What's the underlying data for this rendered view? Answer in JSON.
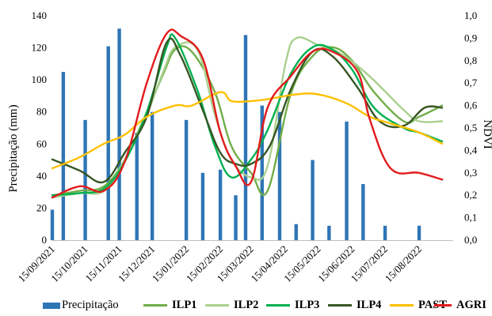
{
  "chart_data": {
    "type": "bar+line",
    "ylabel_left": "Precipitação (mm)",
    "ylabel_right": "NDVI",
    "yleft_lim": [
      0,
      140
    ],
    "yleft_ticks": [
      "0",
      "20",
      "40",
      "60",
      "80",
      "100",
      "120",
      "140"
    ],
    "yright_lim": [
      0,
      1
    ],
    "yright_ticks": [
      "0,0",
      "0,1",
      "0,2",
      "0,3",
      "0,4",
      "0,5",
      "0,6",
      "0,7",
      "0,8",
      "0,9",
      "1,0"
    ],
    "x_range": [
      "2021-09-15",
      "2022-09-15"
    ],
    "x_tick_labels": [
      "15/09/2021",
      "15/10/2021",
      "15/11/2021",
      "15/12/2021",
      "15/01/2022",
      "15/02/2022",
      "15/03/2022",
      "15/04/2022",
      "15/05/2022",
      "15/06/2022",
      "15/07/2022",
      "15/08/2022"
    ],
    "x_tick_dates": [
      "2021-09-15",
      "2021-10-15",
      "2021-11-15",
      "2021-12-15",
      "2022-01-15",
      "2022-02-15",
      "2022-03-15",
      "2022-04-15",
      "2022-05-15",
      "2022-06-15",
      "2022-07-15",
      "2022-08-15"
    ],
    "precipitation": {
      "name": "Precipitação",
      "color": "#2e75b6",
      "points": [
        [
          "2021-09-15",
          19
        ],
        [
          "2021-09-25",
          105
        ],
        [
          "2021-10-15",
          75
        ],
        [
          "2021-11-05",
          121
        ],
        [
          "2021-11-15",
          132
        ],
        [
          "2021-12-01",
          67
        ],
        [
          "2021-12-15",
          80
        ],
        [
          "2022-01-15",
          75
        ],
        [
          "2022-01-30",
          42
        ],
        [
          "2022-02-15",
          44
        ],
        [
          "2022-03-01",
          28
        ],
        [
          "2022-03-10",
          128
        ],
        [
          "2022-03-25",
          84
        ],
        [
          "2022-04-10",
          80
        ],
        [
          "2022-04-25",
          10
        ],
        [
          "2022-05-10",
          50
        ],
        [
          "2022-05-25",
          9
        ],
        [
          "2022-06-10",
          74
        ],
        [
          "2022-06-25",
          35
        ],
        [
          "2022-07-15",
          9
        ],
        [
          "2022-08-15",
          9
        ]
      ]
    },
    "series": [
      {
        "name": "ILP1",
        "color": "#70ad47",
        "points": [
          [
            "2021-09-15",
            0.2
          ],
          [
            "2021-10-10",
            0.22
          ],
          [
            "2021-11-01",
            0.24
          ],
          [
            "2021-11-20",
            0.36
          ],
          [
            "2021-12-10",
            0.57
          ],
          [
            "2021-12-25",
            0.74
          ],
          [
            "2022-01-05",
            0.85
          ],
          [
            "2022-01-20",
            0.84
          ],
          [
            "2022-02-10",
            0.66
          ],
          [
            "2022-02-25",
            0.42
          ],
          [
            "2022-03-15",
            0.3
          ],
          [
            "2022-03-30",
            0.22
          ],
          [
            "2022-04-20",
            0.65
          ],
          [
            "2022-05-10",
            0.82
          ],
          [
            "2022-05-28",
            0.86
          ],
          [
            "2022-06-15",
            0.8
          ],
          [
            "2022-07-05",
            0.66
          ],
          [
            "2022-08-01",
            0.53
          ],
          [
            "2022-08-15",
            0.55
          ],
          [
            "2022-09-05",
            0.6
          ]
        ]
      },
      {
        "name": "ILP2",
        "color": "#a9d18e",
        "points": [
          [
            "2021-09-15",
            0.19
          ],
          [
            "2021-10-10",
            0.21
          ],
          [
            "2021-11-01",
            0.22
          ],
          [
            "2021-11-20",
            0.36
          ],
          [
            "2021-12-10",
            0.56
          ],
          [
            "2021-12-25",
            0.75
          ],
          [
            "2022-01-05",
            0.86
          ],
          [
            "2022-01-25",
            0.85
          ],
          [
            "2022-02-10",
            0.56
          ],
          [
            "2022-02-25",
            0.36
          ],
          [
            "2022-03-15",
            0.28
          ],
          [
            "2022-03-30",
            0.33
          ],
          [
            "2022-04-15",
            0.78
          ],
          [
            "2022-04-25",
            0.9
          ],
          [
            "2022-05-15",
            0.87
          ],
          [
            "2022-06-05",
            0.83
          ],
          [
            "2022-07-01",
            0.73
          ],
          [
            "2022-08-01",
            0.58
          ],
          [
            "2022-08-15",
            0.53
          ],
          [
            "2022-09-05",
            0.53
          ]
        ]
      },
      {
        "name": "ILP3",
        "color": "#00b050",
        "points": [
          [
            "2021-09-15",
            0.2
          ],
          [
            "2021-10-10",
            0.21
          ],
          [
            "2021-11-01",
            0.23
          ],
          [
            "2021-11-20",
            0.35
          ],
          [
            "2021-12-10",
            0.57
          ],
          [
            "2021-12-28",
            0.86
          ],
          [
            "2022-01-05",
            0.9
          ],
          [
            "2022-01-25",
            0.67
          ],
          [
            "2022-02-10",
            0.42
          ],
          [
            "2022-02-25",
            0.28
          ],
          [
            "2022-03-15",
            0.36
          ],
          [
            "2022-03-30",
            0.49
          ],
          [
            "2022-04-20",
            0.74
          ],
          [
            "2022-05-10",
            0.86
          ],
          [
            "2022-05-28",
            0.85
          ],
          [
            "2022-06-15",
            0.76
          ],
          [
            "2022-07-05",
            0.59
          ],
          [
            "2022-08-01",
            0.5
          ],
          [
            "2022-08-15",
            0.48
          ],
          [
            "2022-09-05",
            0.44
          ]
        ]
      },
      {
        "name": "ILP4",
        "color": "#375623",
        "points": [
          [
            "2021-09-15",
            0.36
          ],
          [
            "2021-10-10",
            0.31
          ],
          [
            "2021-11-01",
            0.26
          ],
          [
            "2021-11-20",
            0.39
          ],
          [
            "2021-12-10",
            0.55
          ],
          [
            "2021-12-28",
            0.88
          ],
          [
            "2022-01-10",
            0.82
          ],
          [
            "2022-01-30",
            0.58
          ],
          [
            "2022-02-15",
            0.39
          ],
          [
            "2022-03-01",
            0.34
          ],
          [
            "2022-03-15",
            0.34
          ],
          [
            "2022-04-01",
            0.42
          ],
          [
            "2022-04-20",
            0.67
          ],
          [
            "2022-05-10",
            0.84
          ],
          [
            "2022-05-28",
            0.82
          ],
          [
            "2022-06-20",
            0.68
          ],
          [
            "2022-07-10",
            0.53
          ],
          [
            "2022-08-01",
            0.51
          ],
          [
            "2022-08-20",
            0.59
          ],
          [
            "2022-09-05",
            0.59
          ]
        ]
      },
      {
        "name": "PAST",
        "color": "#ffc000",
        "points": [
          [
            "2021-09-15",
            0.32
          ],
          [
            "2021-10-10",
            0.37
          ],
          [
            "2021-11-01",
            0.43
          ],
          [
            "2021-11-20",
            0.47
          ],
          [
            "2021-12-10",
            0.55
          ],
          [
            "2022-01-05",
            0.6
          ],
          [
            "2022-01-20",
            0.6
          ],
          [
            "2022-02-15",
            0.66
          ],
          [
            "2022-02-25",
            0.62
          ],
          [
            "2022-03-15",
            0.62
          ],
          [
            "2022-04-01",
            0.63
          ],
          [
            "2022-04-25",
            0.65
          ],
          [
            "2022-05-15",
            0.65
          ],
          [
            "2022-06-10",
            0.61
          ],
          [
            "2022-07-01",
            0.55
          ],
          [
            "2022-07-20",
            0.52
          ],
          [
            "2022-08-15",
            0.48
          ],
          [
            "2022-09-05",
            0.43
          ]
        ]
      },
      {
        "name": "AGRI",
        "color": "#e31a1c",
        "points": [
          [
            "2021-09-15",
            0.19
          ],
          [
            "2021-10-10",
            0.24
          ],
          [
            "2021-11-01",
            0.22
          ],
          [
            "2021-11-20",
            0.35
          ],
          [
            "2021-12-10",
            0.7
          ],
          [
            "2021-12-28",
            0.92
          ],
          [
            "2022-01-10",
            0.91
          ],
          [
            "2022-01-30",
            0.81
          ],
          [
            "2022-02-15",
            0.48
          ],
          [
            "2022-03-01",
            0.33
          ],
          [
            "2022-03-15",
            0.26
          ],
          [
            "2022-03-30",
            0.59
          ],
          [
            "2022-04-20",
            0.73
          ],
          [
            "2022-05-10",
            0.84
          ],
          [
            "2022-05-28",
            0.84
          ],
          [
            "2022-06-20",
            0.75
          ],
          [
            "2022-07-01",
            0.54
          ],
          [
            "2022-07-20",
            0.32
          ],
          [
            "2022-08-15",
            0.3
          ],
          [
            "2022-09-05",
            0.27
          ]
        ]
      }
    ],
    "legend": [
      "Precipitação",
      "ILP1",
      "ILP2",
      "ILP3",
      "ILP4",
      "PAST",
      "AGRI"
    ],
    "legend_position": "bottom",
    "grid": false
  }
}
